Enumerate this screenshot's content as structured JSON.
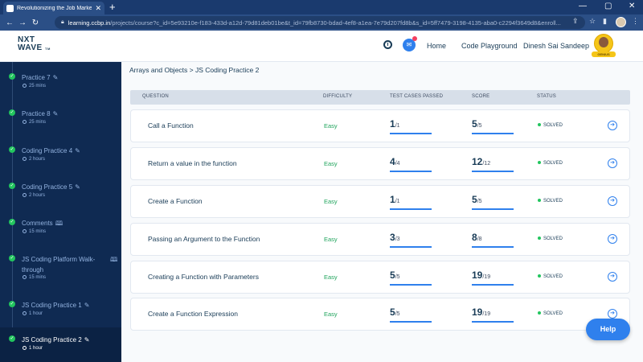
{
  "browser": {
    "tab_title": "Revolutionizing the Job Market |",
    "tab_close": "✕",
    "new_tab": "+",
    "window_controls": [
      "—",
      "▢",
      "✕"
    ],
    "url_host": "learning.ccbp.in",
    "url_rest": "/projects/course?c_id=5e93210e-f183-433d-a12d-79d81deb01be&t_id=79fb8730-bdad-4ef8-a1ea-7e79d207fd8b&s_id=5ff7479-3198-4135-aba0-c2294f3649d8&enroll...",
    "icons": [
      "back-icon",
      "forward-icon",
      "reload-icon",
      "lock-icon",
      "share-icon",
      "star-icon",
      "sidepanel-icon"
    ]
  },
  "header": {
    "logo_line1": "NXT",
    "logo_line2": "WAVE",
    "logo_tm": "TM",
    "nav": [
      "Home",
      "Code Playground"
    ],
    "user_name": "Dinesh Sai Sandeep",
    "badge": "GENIUS"
  },
  "sidebar": {
    "items": [
      {
        "name": "Practice 7",
        "duration": "25 mins",
        "icon": "edit-icon",
        "active": false
      },
      {
        "name": "Practice 8",
        "duration": "25 mins",
        "icon": "edit-icon",
        "active": false
      },
      {
        "name": "Coding Practice 4",
        "duration": "2 hours",
        "icon": "edit-icon",
        "active": false
      },
      {
        "name": "Coding Practice 5",
        "duration": "2 hours",
        "icon": "edit-icon",
        "active": false
      },
      {
        "name": "Comments",
        "duration": "15 mins",
        "icon": "book-icon",
        "active": false
      },
      {
        "name": "JS Coding Platform Walk-through",
        "duration": "15 mins",
        "icon": "book-icon",
        "active": false
      },
      {
        "name": "JS Coding Practice 1",
        "duration": "1 hour",
        "icon": "edit-icon",
        "active": false
      },
      {
        "name": "JS Coding Practice 2",
        "duration": "1 hour",
        "icon": "edit-icon",
        "active": true
      }
    ]
  },
  "main": {
    "breadcrumb": "Arrays and Objects > JS Coding Practice 2",
    "columns": [
      "QUESTION",
      "DIFFICULTY",
      "TEST CASES PASSED",
      "SCORE",
      "STATUS"
    ],
    "rows": [
      {
        "question": "Call a Function",
        "difficulty": "Easy",
        "tc": "1",
        "tc_total": "/1",
        "score": "5",
        "score_total": "/5",
        "status": "SOLVED"
      },
      {
        "question": "Return a value in the function",
        "difficulty": "Easy",
        "tc": "4",
        "tc_total": "/4",
        "score": "12",
        "score_total": "/12",
        "status": "SOLVED"
      },
      {
        "question": "Create a Function",
        "difficulty": "Easy",
        "tc": "1",
        "tc_total": "/1",
        "score": "5",
        "score_total": "/5",
        "status": "SOLVED"
      },
      {
        "question": "Passing an Argument to the Function",
        "difficulty": "Easy",
        "tc": "3",
        "tc_total": "/3",
        "score": "8",
        "score_total": "/8",
        "status": "SOLVED"
      },
      {
        "question": "Creating a Function with Parameters",
        "difficulty": "Easy",
        "tc": "5",
        "tc_total": "/5",
        "score": "19",
        "score_total": "/19",
        "status": "SOLVED"
      },
      {
        "question": "Create a Function Expression",
        "difficulty": "Easy",
        "tc": "5",
        "tc_total": "/5",
        "score": "19",
        "score_total": "/19",
        "status": "SOLVED"
      }
    ],
    "help_label": "Help"
  },
  "colors": {
    "sidebar_bg": "#0f2a52",
    "accent": "#2f80ed",
    "easy": "#22a55e",
    "solved": "#22c55e"
  }
}
